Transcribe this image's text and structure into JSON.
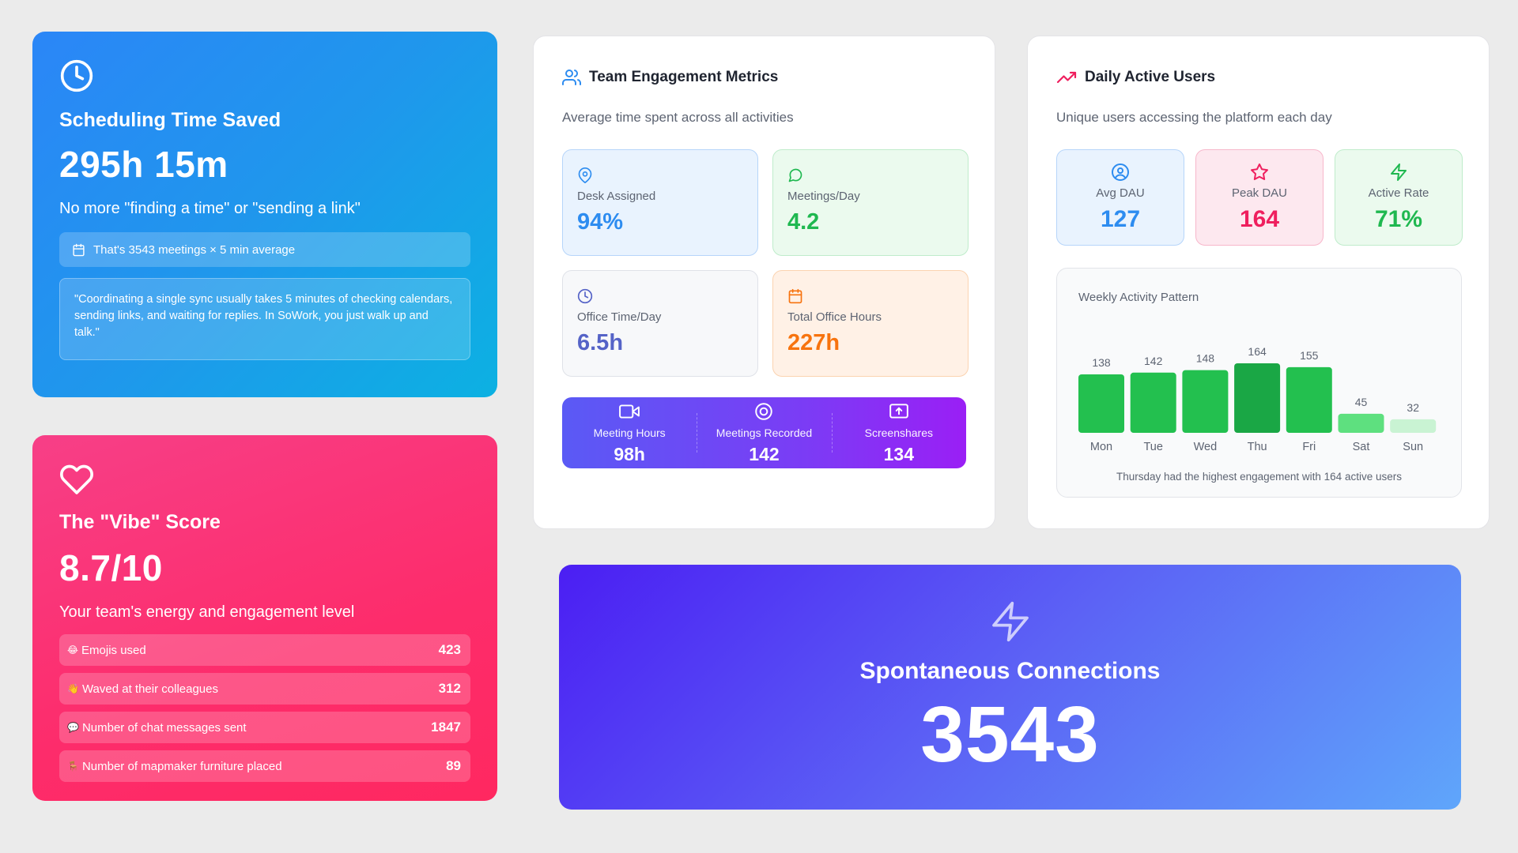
{
  "scheduling": {
    "icon": "clock-icon",
    "title": "Scheduling Time Saved",
    "value": "295h 15m",
    "subtitle": "No more \"finding a time\" or \"sending a link\"",
    "pill_icon": "calendar-icon",
    "pill_text": "That's 3543 meetings × 5 min average",
    "quote": "\"Coordinating a single sync usually takes 5 minutes of checking calendars, sending links, and waiting for replies. In SoWork, you just walk up and talk.\""
  },
  "vibe": {
    "icon": "heart-icon",
    "title": "The \"Vibe\" Score",
    "value": "8.7/10",
    "subtitle": "Your team's energy and engagement level",
    "rows": [
      {
        "emoji": "😂",
        "label": "Emojis used",
        "value": "423"
      },
      {
        "emoji": "👋",
        "label": "Waved at their colleagues",
        "value": "312"
      },
      {
        "emoji": "💬",
        "label": "Number of chat messages sent",
        "value": "1847"
      },
      {
        "emoji": "🪑",
        "label": "Number of mapmaker furniture placed",
        "value": "89"
      }
    ]
  },
  "team": {
    "icon": "users-icon",
    "title": "Team Engagement Metrics",
    "subtitle": "Average time spent across all activities",
    "metrics": [
      {
        "icon": "map-pin-icon",
        "label": "Desk Assigned",
        "value": "94%"
      },
      {
        "icon": "chat-bubble-icon",
        "label": "Meetings/Day",
        "value": "4.2"
      },
      {
        "icon": "clock-icon",
        "label": "Office Time/Day",
        "value": "6.5h"
      },
      {
        "icon": "calendar-icon",
        "label": "Total Office Hours",
        "value": "227h"
      }
    ],
    "summary": [
      {
        "icon": "video-camera-icon",
        "label": "Meeting Hours",
        "value": "98h"
      },
      {
        "icon": "record-icon",
        "label": "Meetings Recorded",
        "value": "142"
      },
      {
        "icon": "screen-share-icon",
        "label": "Screenshares",
        "value": "134"
      }
    ]
  },
  "dau": {
    "icon": "trending-up-icon",
    "title": "Daily Active Users",
    "subtitle": "Unique users accessing the platform each day",
    "tiles": [
      {
        "icon": "user-circle-icon",
        "label": "Avg DAU",
        "value": "127"
      },
      {
        "icon": "star-icon",
        "label": "Peak DAU",
        "value": "164"
      },
      {
        "icon": "lightning-icon",
        "label": "Active Rate",
        "value": "71%"
      }
    ],
    "chart_title": "Weekly Activity Pattern",
    "chart_note": "Thursday had the highest engagement with 164 active users"
  },
  "chart_data": {
    "type": "bar",
    "title": "Weekly Activity Pattern",
    "categories": [
      "Mon",
      "Tue",
      "Wed",
      "Thu",
      "Fri",
      "Sat",
      "Sun"
    ],
    "values": [
      138,
      142,
      148,
      164,
      155,
      45,
      32
    ],
    "xlabel": "",
    "ylabel": "",
    "colors": [
      "#23c04f",
      "#23c04f",
      "#23c04f",
      "#1aa745",
      "#23c04f",
      "#5ee07f",
      "#c9f3d3"
    ]
  },
  "spontaneous": {
    "icon": "lightning-icon",
    "title": "Spontaneous Connections",
    "value": "3543"
  }
}
